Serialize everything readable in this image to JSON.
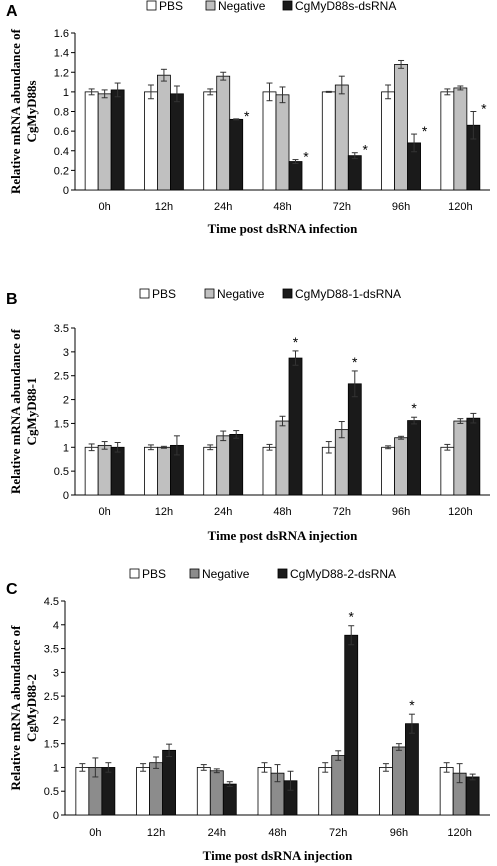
{
  "chart_data": [
    {
      "panel": "A",
      "type": "bar",
      "categories": [
        "0h",
        "12h",
        "24h",
        "48h",
        "72h",
        "96h",
        "120h"
      ],
      "series": [
        {
          "name": "PBS",
          "color": "#ffffff",
          "values": [
            1.0,
            1.0,
            1.0,
            1.0,
            1.0,
            1.0,
            1.0
          ],
          "errors": [
            0.03,
            0.07,
            0.03,
            0.09,
            0.005,
            0.07,
            0.03
          ]
        },
        {
          "name": "Negative",
          "color": "#c0c0c0",
          "values": [
            0.98,
            1.17,
            1.16,
            0.97,
            1.07,
            1.28,
            1.04
          ],
          "errors": [
            0.04,
            0.06,
            0.04,
            0.08,
            0.09,
            0.04,
            0.02
          ]
        },
        {
          "name": "CgMyD88s-dsRNA",
          "color": "#1a1a1a",
          "values": [
            1.02,
            0.98,
            0.72,
            0.29,
            0.35,
            0.48,
            0.66
          ],
          "errors": [
            0.07,
            0.08,
            0.005,
            0.02,
            0.03,
            0.09,
            0.14
          ]
        }
      ],
      "significant": [
        false,
        false,
        true,
        true,
        true,
        true,
        true
      ],
      "ylabel": "Relative mRNA abundance of CgMyD88s",
      "xlabel": "Time post dsRNA infection",
      "ylim": [
        0,
        1.6
      ],
      "yticks": [
        "0",
        "0.2",
        "0.4",
        "0.6",
        "0.8",
        "1",
        "1.2",
        "1.4",
        "1.6"
      ],
      "legend": "top"
    },
    {
      "panel": "B",
      "type": "bar",
      "categories": [
        "0h",
        "12h",
        "24h",
        "48h",
        "72h",
        "96h",
        "120h"
      ],
      "series": [
        {
          "name": "PBS",
          "color": "#ffffff",
          "values": [
            1.0,
            1.0,
            1.0,
            1.0,
            1.0,
            1.0,
            1.0
          ],
          "errors": [
            0.07,
            0.05,
            0.05,
            0.06,
            0.12,
            0.03,
            0.06
          ]
        },
        {
          "name": "Negative",
          "color": "#c0c0c0",
          "values": [
            1.04,
            1.0,
            1.24,
            1.55,
            1.37,
            1.2,
            1.55
          ],
          "errors": [
            0.08,
            0.02,
            0.1,
            0.1,
            0.17,
            0.03,
            0.05
          ]
        },
        {
          "name": "CgMyD88-1-dsRNA",
          "color": "#1a1a1a",
          "values": [
            1.0,
            1.04,
            1.27,
            2.87,
            2.33,
            1.56,
            1.61
          ],
          "errors": [
            0.1,
            0.2,
            0.08,
            0.15,
            0.27,
            0.07,
            0.1
          ]
        }
      ],
      "significant": [
        false,
        false,
        false,
        true,
        true,
        true,
        false
      ],
      "ylabel": "Relative mRNA abundance of CgMyD88-1",
      "xlabel": "Time post dsRNA injection",
      "ylim": [
        0,
        3.5
      ],
      "yticks": [
        "0",
        "0.5",
        "1",
        "1.5",
        "2",
        "2.5",
        "3",
        "3.5"
      ],
      "legend": "top"
    },
    {
      "panel": "C",
      "type": "bar",
      "categories": [
        "0h",
        "12h",
        "24h",
        "48h",
        "72h",
        "96h",
        "120h"
      ],
      "series": [
        {
          "name": "PBS",
          "color": "#ffffff",
          "values": [
            1.0,
            1.0,
            1.0,
            1.0,
            1.0,
            1.0,
            1.0
          ],
          "errors": [
            0.08,
            0.08,
            0.06,
            0.1,
            0.1,
            0.08,
            0.1
          ]
        },
        {
          "name": "Negative",
          "color": "#8c8c8c",
          "values": [
            1.0,
            1.1,
            0.93,
            0.88,
            1.25,
            1.43,
            0.88
          ],
          "errors": [
            0.2,
            0.12,
            0.04,
            0.18,
            0.1,
            0.07,
            0.2
          ]
        },
        {
          "name": "CgMyD88-2-dsRNA",
          "color": "#1a1a1a",
          "values": [
            1.0,
            1.36,
            0.65,
            0.72,
            3.78,
            1.92,
            0.8
          ],
          "errors": [
            0.1,
            0.13,
            0.05,
            0.2,
            0.2,
            0.2,
            0.06
          ]
        }
      ],
      "significant": [
        false,
        false,
        false,
        false,
        true,
        true,
        false
      ],
      "ylabel": "Relative mRNA abundance of CgMyD88-2",
      "xlabel": "Time post dsRNA injection",
      "ylim": [
        0,
        4.5
      ],
      "yticks": [
        "0",
        "0.5",
        "1",
        "1.5",
        "2",
        "2.5",
        "3",
        "3.5",
        "4",
        "4.5"
      ],
      "legend": "top"
    }
  ],
  "significance_marker": "*"
}
